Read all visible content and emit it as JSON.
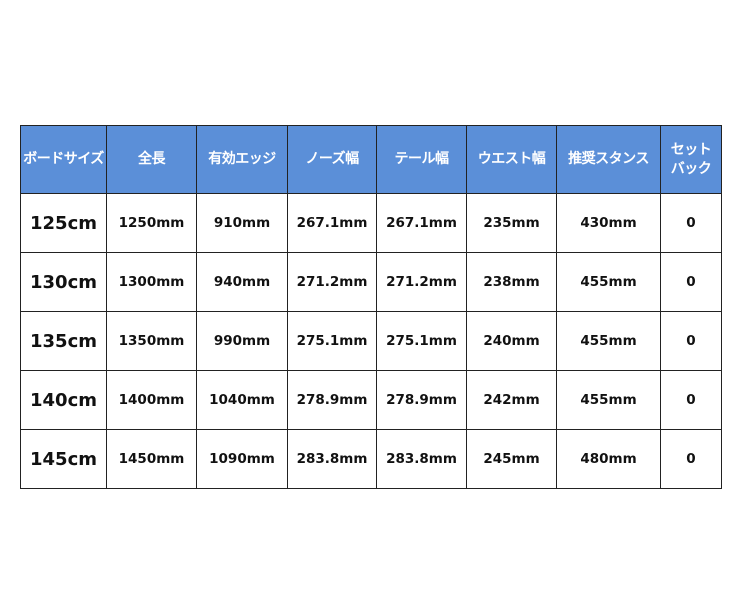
{
  "colors": {
    "header_bg": "#5b8fd8",
    "header_text": "#ffffff",
    "border": "#222222"
  },
  "table": {
    "headers": [
      "ボードサイズ",
      "全長",
      "有効エッジ",
      "ノーズ幅",
      "テール幅",
      "ウエスト幅",
      "推奨スタンス",
      "セット\nバック"
    ],
    "header_setback": [
      "セット",
      "バック"
    ],
    "rows": [
      [
        "125cm",
        "1250mm",
        "910mm",
        "267.1mm",
        "267.1mm",
        "235mm",
        "430mm",
        "0"
      ],
      [
        "130cm",
        "1300mm",
        "940mm",
        "271.2mm",
        "271.2mm",
        "238mm",
        "455mm",
        "0"
      ],
      [
        "135cm",
        "1350mm",
        "990mm",
        "275.1mm",
        "275.1mm",
        "240mm",
        "455mm",
        "0"
      ],
      [
        "140cm",
        "1400mm",
        "1040mm",
        "278.9mm",
        "278.9mm",
        "242mm",
        "455mm",
        "0"
      ],
      [
        "145cm",
        "1450mm",
        "1090mm",
        "283.8mm",
        "283.8mm",
        "245mm",
        "480mm",
        "0"
      ]
    ]
  }
}
